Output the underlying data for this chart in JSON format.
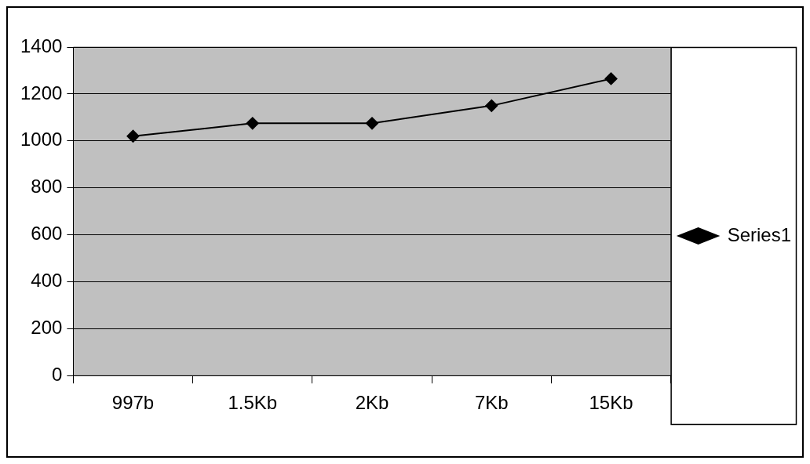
{
  "chart_data": {
    "type": "line",
    "categories": [
      "997b",
      "1.5Kb",
      "2Kb",
      "7Kb",
      "15Kb"
    ],
    "series": [
      {
        "name": "Series1",
        "color": "#000000",
        "values": [
          1020,
          1075,
          1075,
          1150,
          1265
        ]
      }
    ],
    "ylim": [
      0,
      1400
    ],
    "yticks": [
      0,
      200,
      400,
      600,
      800,
      1000,
      1200,
      1400
    ],
    "grid": "y",
    "legend": "right",
    "marker": "diamond",
    "line_style": "solid"
  }
}
